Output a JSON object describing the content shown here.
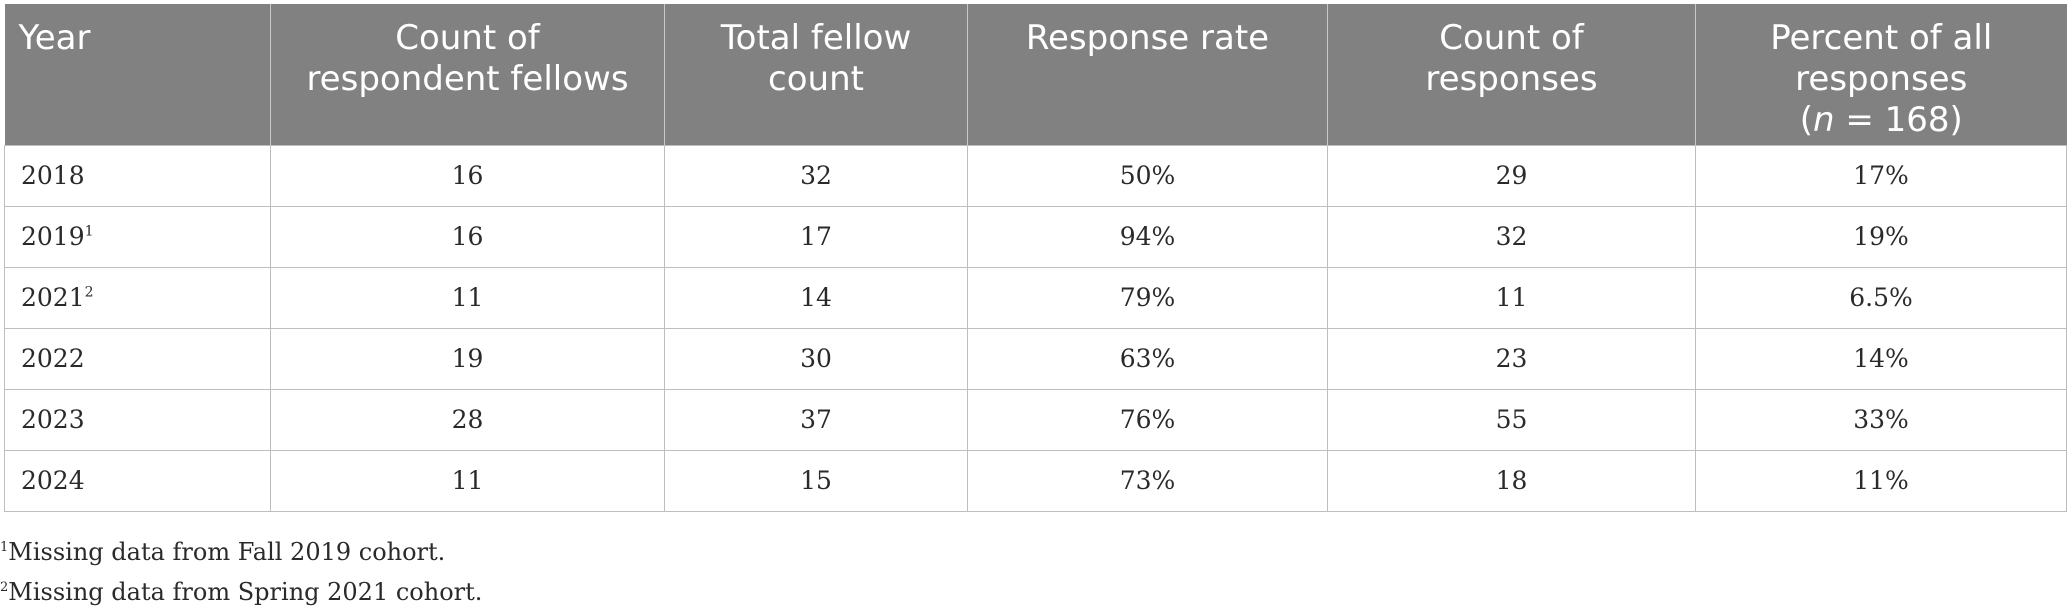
{
  "table": {
    "headers": {
      "year": "Year",
      "respondents_line1": "Count of",
      "respondents_line2": "respondent fellows",
      "total_line1": "Total fellow",
      "total_line2": "count",
      "rate": "Response rate",
      "responses_line1": "Count of",
      "responses_line2": "responses",
      "percent_line1": "Percent of all",
      "percent_line2": "responses",
      "percent_n_open": "(",
      "percent_n_var": "n",
      "percent_n_rest": " = 168)"
    },
    "rows": [
      {
        "year": "2018",
        "sup": "",
        "respondents": "16",
        "total": "32",
        "rate": "50%",
        "responses": "29",
        "percent": "17%"
      },
      {
        "year": "2019",
        "sup": "1",
        "respondents": "16",
        "total": "17",
        "rate": "94%",
        "responses": "32",
        "percent": "19%"
      },
      {
        "year": "2021",
        "sup": "2",
        "respondents": "11",
        "total": "14",
        "rate": "79%",
        "responses": "11",
        "percent": "6.5%"
      },
      {
        "year": "2022",
        "sup": "",
        "respondents": "19",
        "total": "30",
        "rate": "63%",
        "responses": "23",
        "percent": "14%"
      },
      {
        "year": "2023",
        "sup": "",
        "respondents": "28",
        "total": "37",
        "rate": "76%",
        "responses": "55",
        "percent": "33%"
      },
      {
        "year": "2024",
        "sup": "",
        "respondents": "11",
        "total": "15",
        "rate": "73%",
        "responses": "18",
        "percent": "11%"
      }
    ]
  },
  "footnotes": [
    {
      "mark": "1",
      "text": "Missing data from Fall 2019 cohort."
    },
    {
      "mark": "2",
      "text": "Missing data from Spring 2021 cohort."
    }
  ],
  "colors": {
    "header_bg": "#808180",
    "header_text": "#ffffff",
    "grid": "#bdbdbd"
  }
}
